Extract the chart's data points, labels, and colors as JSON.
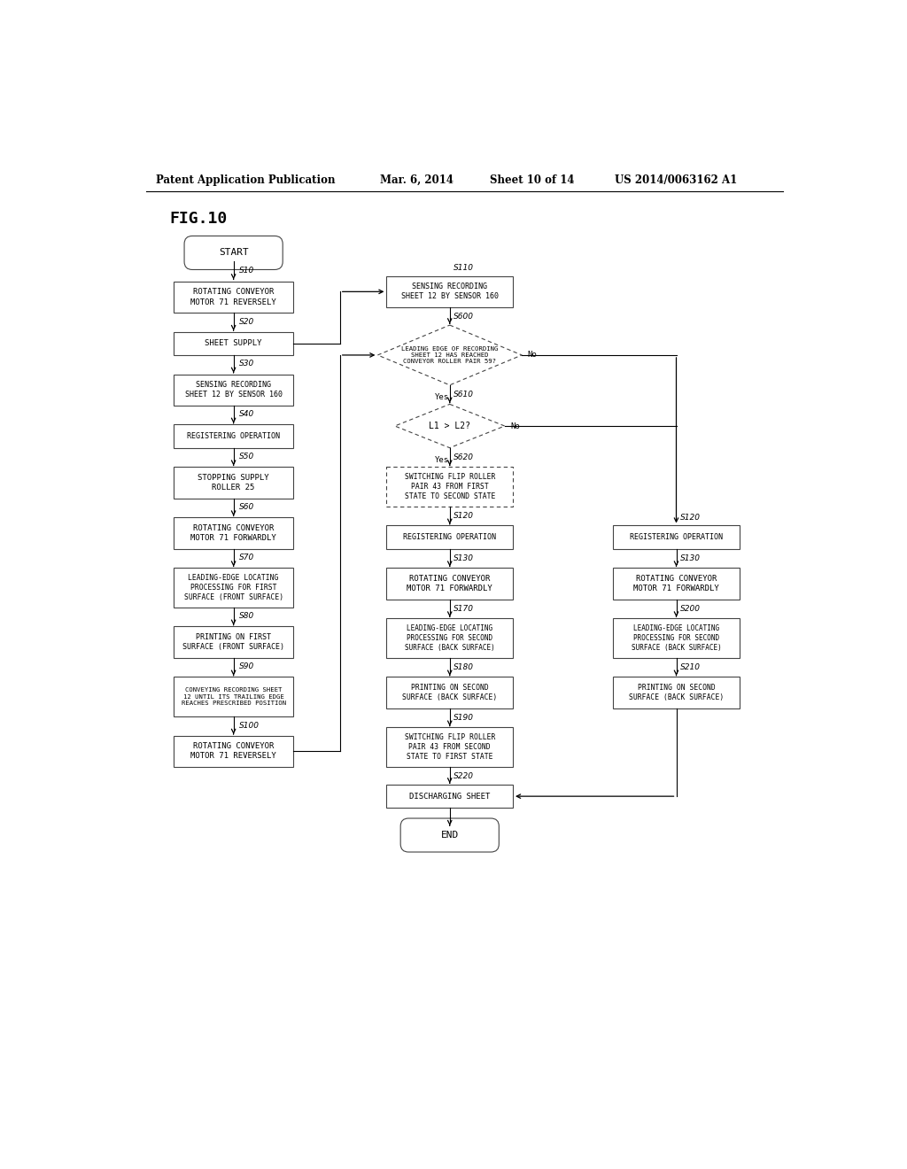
{
  "title_header": "Patent Application Publication",
  "title_date": "Mar. 6, 2014",
  "title_sheet": "Sheet 10 of 14",
  "title_patent": "US 2014/0063162 A1",
  "fig_label": "FIG.10",
  "background_color": "#ffffff",
  "box_edge_color": "#444444"
}
